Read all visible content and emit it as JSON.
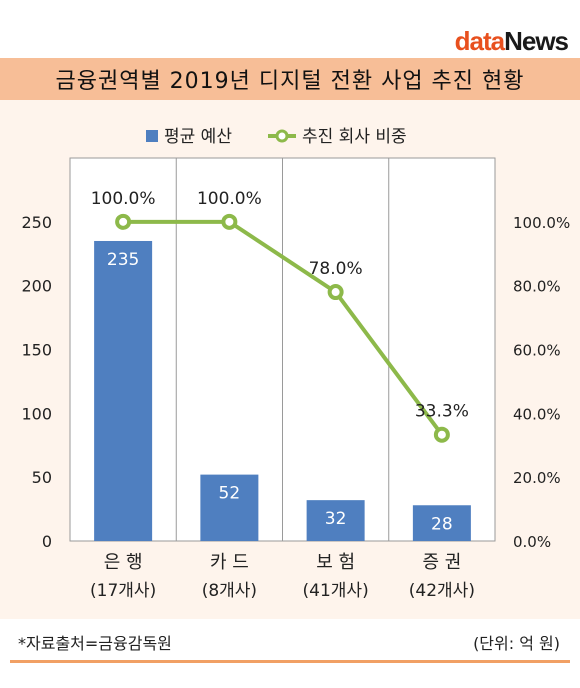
{
  "logo": {
    "part1": "data",
    "part2": "News"
  },
  "title": "금융권역별 2019년 디지털 전환 사업 추진 현황",
  "source": "*자료출처=금융감독원",
  "unit": "(단위: 억 원)",
  "colors": {
    "bar": "#4f7fc0",
    "line": "#8db94a",
    "title_bg": "#f7be97",
    "chart_bg": "#fef4ec",
    "rule": "#f1a064"
  },
  "chart_data": {
    "type": "bar",
    "categories": [
      "은 행",
      "카 드",
      "보 험",
      "증 권"
    ],
    "category_sublabels": [
      "(17개사)",
      "(8개사)",
      "(41개사)",
      "(42개사)"
    ],
    "series": [
      {
        "name": "평균 예산",
        "type": "bar",
        "axis": "left",
        "values": [
          235,
          52,
          32,
          28
        ],
        "labels": [
          "235",
          "52",
          "32",
          "28"
        ]
      },
      {
        "name": "추진 회사 비중",
        "type": "line",
        "axis": "right",
        "values": [
          100.0,
          100.0,
          78.0,
          33.3
        ],
        "labels": [
          "100.0%",
          "100.0%",
          "78.0%",
          "33.3%"
        ]
      }
    ],
    "left_axis": {
      "ylim": [
        0,
        300
      ],
      "ticks": [
        "0",
        "50",
        "100",
        "150",
        "200",
        "250"
      ]
    },
    "right_axis": {
      "ylim": [
        0,
        120
      ],
      "ticks": [
        "0.0%",
        "20.0%",
        "40.0%",
        "60.0%",
        "80.0%",
        "100.0%"
      ]
    },
    "grid": "vertical",
    "legend_position": "top"
  }
}
